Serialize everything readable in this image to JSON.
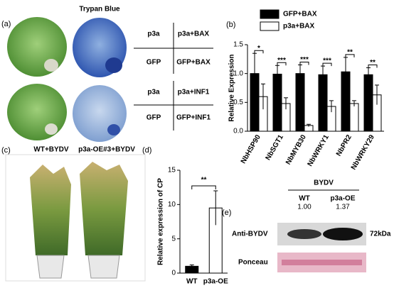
{
  "panels": {
    "a": {
      "label": "(a)",
      "stain_title": "Trypan Blue",
      "tables": [
        {
          "rows": [
            [
              "p3a",
              "p3a+BAX"
            ],
            [
              "GFP",
              "GFP+BAX"
            ]
          ]
        },
        {
          "rows": [
            [
              "p3a",
              "p3a+INF1"
            ],
            [
              "GFP",
              "GFP+INF1"
            ]
          ]
        }
      ]
    },
    "c": {
      "label": "(c)",
      "captions": [
        "WT+BYDV",
        "p3a-OE#3+BYDV"
      ]
    },
    "e": {
      "label": "(e)",
      "group": "BYDV",
      "lanes": [
        "WT",
        "p3a-OE"
      ],
      "ratios": [
        "1.00",
        "1.37"
      ],
      "rows": [
        "Anti-BYDV",
        "Ponceau"
      ],
      "size": "72kDa"
    }
  },
  "chart_data": [
    {
      "type": "bar",
      "panel_label": "(b)",
      "y_label": "Relative Expression",
      "categories": [
        "NbHSP90",
        "NbSGT1",
        "NbMYB30",
        "NbWRKY1",
        "NbPR2",
        "NbWRKY29"
      ],
      "series": [
        {
          "name": "GFP+BAX",
          "color": "#000000",
          "values": [
            1.0,
            0.99,
            1.0,
            0.98,
            1.03,
            0.98
          ],
          "errors": [
            0.35,
            0.15,
            0.15,
            0.15,
            0.25,
            0.12
          ]
        },
        {
          "name": "p3a+BAX",
          "color": "#ffffff",
          "values": [
            0.6,
            0.48,
            0.1,
            0.43,
            0.48,
            0.63
          ],
          "errors": [
            0.22,
            0.1,
            0.02,
            0.1,
            0.05,
            0.17
          ]
        }
      ],
      "annotations": [
        "*",
        "***",
        "***",
        "***",
        "**",
        "**"
      ],
      "ylim": [
        0,
        1.5
      ],
      "yticks": [
        {
          "value": 0,
          "label": "0.0"
        },
        {
          "value": 0.5,
          "label": "0.5"
        },
        {
          "value": 1,
          "label": "1.0"
        },
        {
          "value": 1.5,
          "label": "1.5"
        }
      ]
    },
    {
      "type": "simplebar",
      "panel_label": "(d)",
      "y_label": "Relative expression of CP",
      "categories": [
        "WT",
        "p3a-OE"
      ],
      "values": [
        1.0,
        9.5
      ],
      "errors": [
        0.2,
        2.5
      ],
      "colors": [
        "#000000",
        "#ffffff"
      ],
      "annotation": "**",
      "ylim": [
        0,
        15
      ],
      "yticks": [
        0,
        5,
        10,
        15
      ]
    }
  ]
}
